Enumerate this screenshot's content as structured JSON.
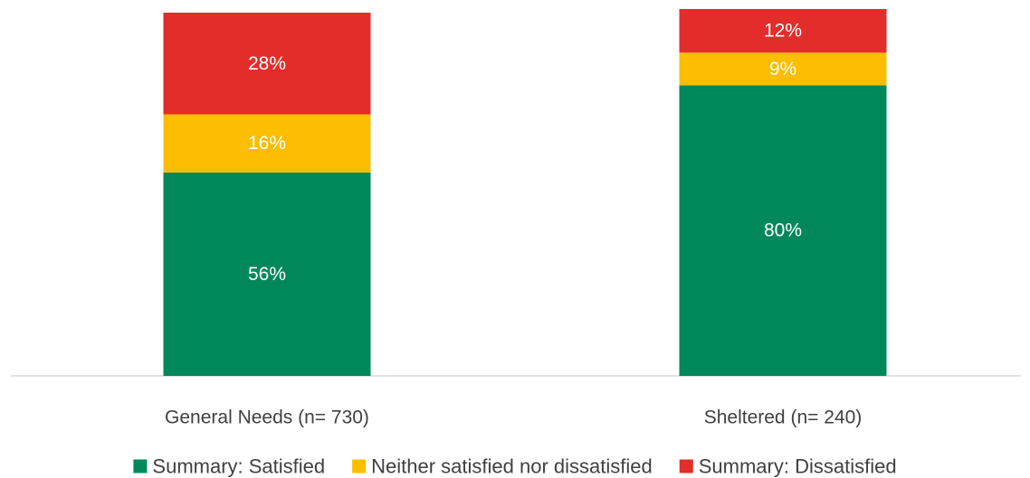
{
  "chart_data": {
    "type": "bar",
    "stacked": true,
    "title": "",
    "xlabel": "",
    "ylabel": "",
    "ylim": [
      0,
      100
    ],
    "grid": false,
    "legend_position": "bottom",
    "categories": [
      "General Needs (n= 730)",
      "Sheltered (n= 240)"
    ],
    "series": [
      {
        "name": "Summary: Satisfied",
        "values": [
          56,
          80
        ],
        "labels": [
          "56%",
          "80%"
        ],
        "color": "#00885A"
      },
      {
        "name": "Neither satisfied nor dissatisfied",
        "values": [
          16,
          9
        ],
        "labels": [
          "16%",
          "9%"
        ],
        "color": "#FDBD00"
      },
      {
        "name": "Summary: Dissatisfied",
        "values": [
          28,
          12
        ],
        "labels": [
          "28%",
          "12%"
        ],
        "color": "#E32D2A"
      }
    ]
  }
}
